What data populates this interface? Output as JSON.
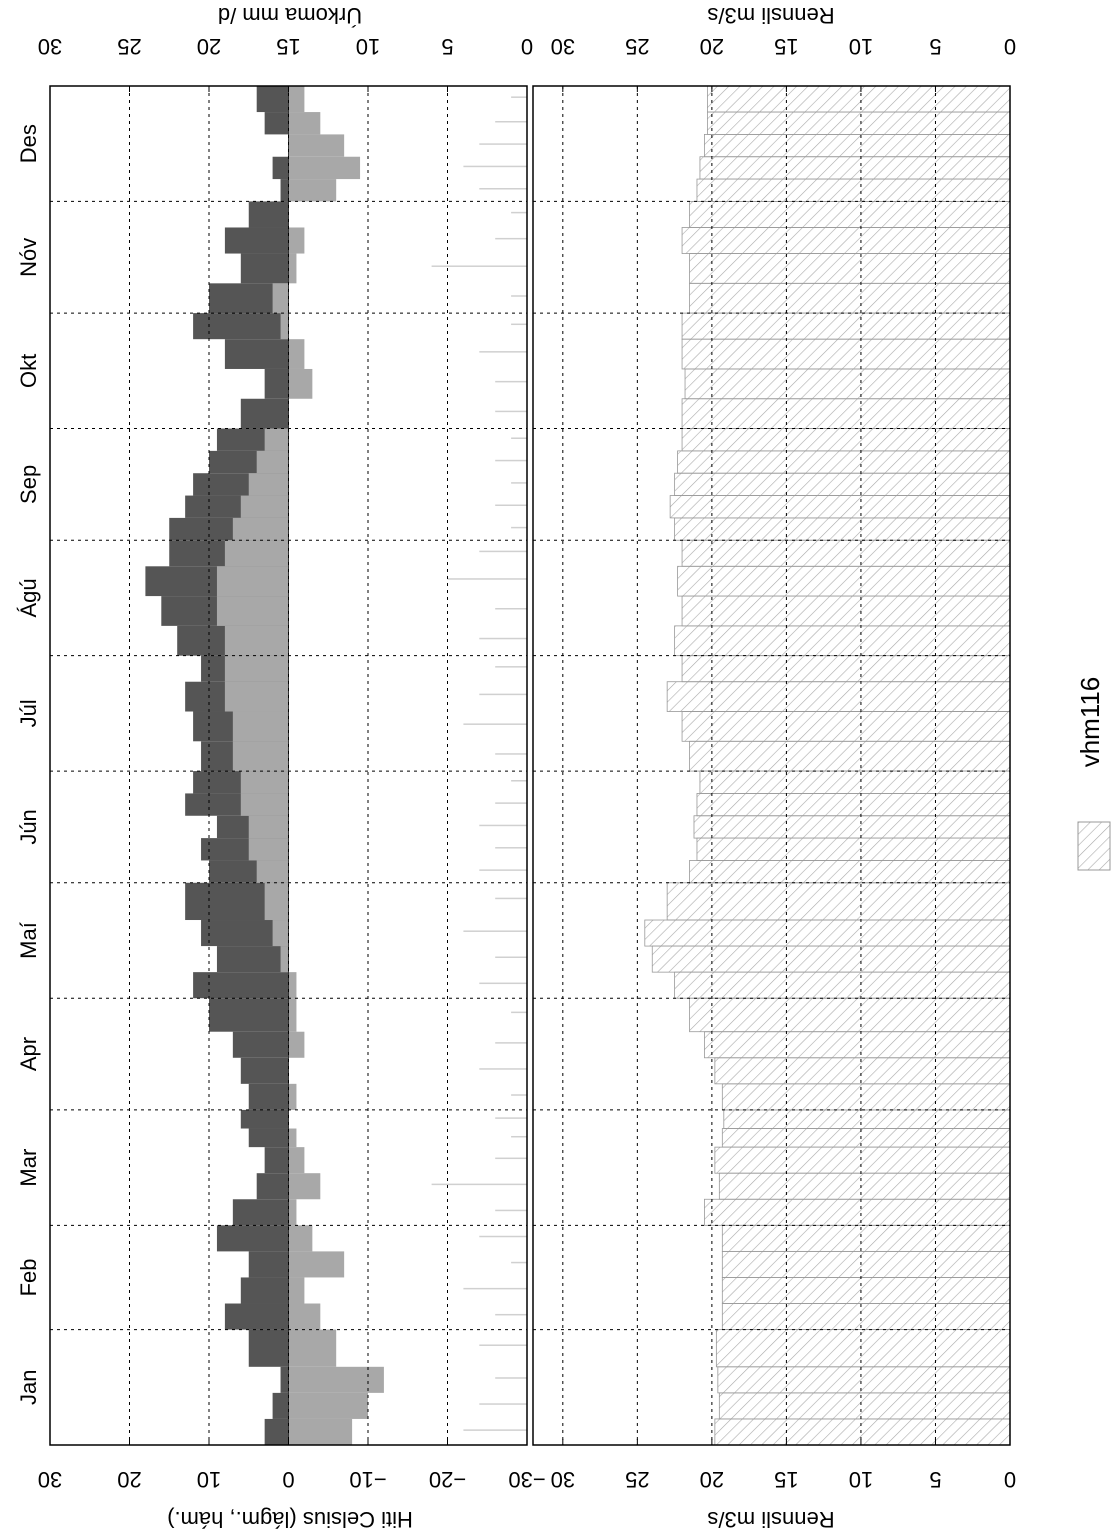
{
  "chart_data": [
    {
      "type": "bar",
      "ylabel": "Hiti Celsius (lágm., hám.)",
      "y2label": "Úrkoma mm /d",
      "categories": [
        "Jan",
        "Feb",
        "Mar",
        "Apr",
        "Maí",
        "Jún",
        "Júl",
        "Ágú",
        "Sep",
        "Okt",
        "Nóv",
        "Des"
      ],
      "xlim": [
        0,
        365
      ],
      "xticks": [
        31,
        59,
        90,
        120,
        151,
        181,
        212,
        243,
        273,
        304,
        334
      ],
      "x": [
        0,
        7,
        14,
        21,
        31,
        38,
        45,
        52,
        59,
        66,
        73,
        80,
        85,
        90,
        97,
        104,
        111,
        120,
        127,
        134,
        141,
        151,
        157,
        163,
        169,
        175,
        181,
        189,
        197,
        205,
        212,
        220,
        228,
        236,
        243,
        249,
        255,
        261,
        267,
        273,
        281,
        289,
        297,
        304,
        312,
        320,
        327,
        334,
        340,
        346,
        352,
        358
      ],
      "ylim": [
        -30,
        30
      ],
      "yticks": [
        {
          "value": -30,
          "label": "−30"
        },
        {
          "value": -20,
          "label": "−20"
        },
        {
          "value": -10,
          "label": "−10"
        },
        0,
        10,
        20,
        30
      ],
      "y2lim": [
        0,
        30
      ],
      "y2ticks": [
        0,
        5,
        10,
        15,
        20,
        25,
        30
      ],
      "grid": true,
      "series": [
        {
          "color": "#555555",
          "values": [
            3,
            2,
            1,
            5,
            8,
            6,
            5,
            9,
            7,
            4,
            3,
            5,
            6,
            5,
            6,
            7,
            10,
            12,
            9,
            11,
            13,
            10,
            11,
            9,
            13,
            12,
            11,
            12,
            13,
            11,
            14,
            16,
            18,
            15,
            15,
            13,
            12,
            10,
            9,
            6,
            3,
            8,
            12,
            10,
            6,
            8,
            5,
            1,
            2,
            0,
            3,
            4
          ]
        },
        {
          "color": "#a8a8a8",
          "values": [
            -8,
            -10,
            -12,
            -6,
            -4,
            -2,
            -7,
            -3,
            -1,
            -4,
            -2,
            -1,
            0,
            -1,
            0,
            -2,
            -1,
            -1,
            1,
            2,
            3,
            4,
            5,
            5,
            6,
            6,
            7,
            7,
            8,
            8,
            8,
            9,
            9,
            8,
            7,
            6,
            5,
            4,
            3,
            0,
            -3,
            -2,
            1,
            2,
            -1,
            -2,
            0,
            -6,
            -9,
            -7,
            -4,
            -2
          ]
        },
        {
          "axis": "y2",
          "color": "#d0d0d0",
          "values": [
            4,
            3,
            2,
            3,
            2,
            4,
            1,
            3,
            2,
            6,
            2,
            1,
            2,
            1,
            3,
            2,
            1,
            3,
            2,
            4,
            2,
            3,
            2,
            3,
            2,
            1,
            2,
            4,
            3,
            2,
            3,
            2,
            5,
            3,
            1,
            2,
            1,
            2,
            1,
            2,
            2,
            3,
            1,
            1,
            6,
            2,
            1,
            3,
            4,
            3,
            2,
            1
          ]
        }
      ]
    },
    {
      "type": "step",
      "ylabel": "Rennsli m3/s",
      "ylim": [
        0,
        32
      ],
      "yticks": [
        0,
        5,
        10,
        15,
        20,
        25,
        30
      ],
      "grid": true,
      "legend": "right",
      "series": [
        {
          "name": "vhm116",
          "color": "#999999",
          "values": [
            19.8,
            19.5,
            19.6,
            19.7,
            19.3,
            19.3,
            19.3,
            19.3,
            20.5,
            19.5,
            19.8,
            19.3,
            19.2,
            19.3,
            19.8,
            20.5,
            21.5,
            22.5,
            24,
            24.5,
            23,
            21.5,
            21,
            21.2,
            21,
            20.8,
            21.5,
            22,
            23,
            22,
            22.5,
            22,
            22.3,
            22,
            22.5,
            22.8,
            22.5,
            22.3,
            22,
            22,
            21.8,
            22,
            22,
            21.5,
            21.5,
            22,
            21.5,
            21,
            20.8,
            20.5,
            20.3,
            20.3
          ]
        }
      ]
    }
  ]
}
